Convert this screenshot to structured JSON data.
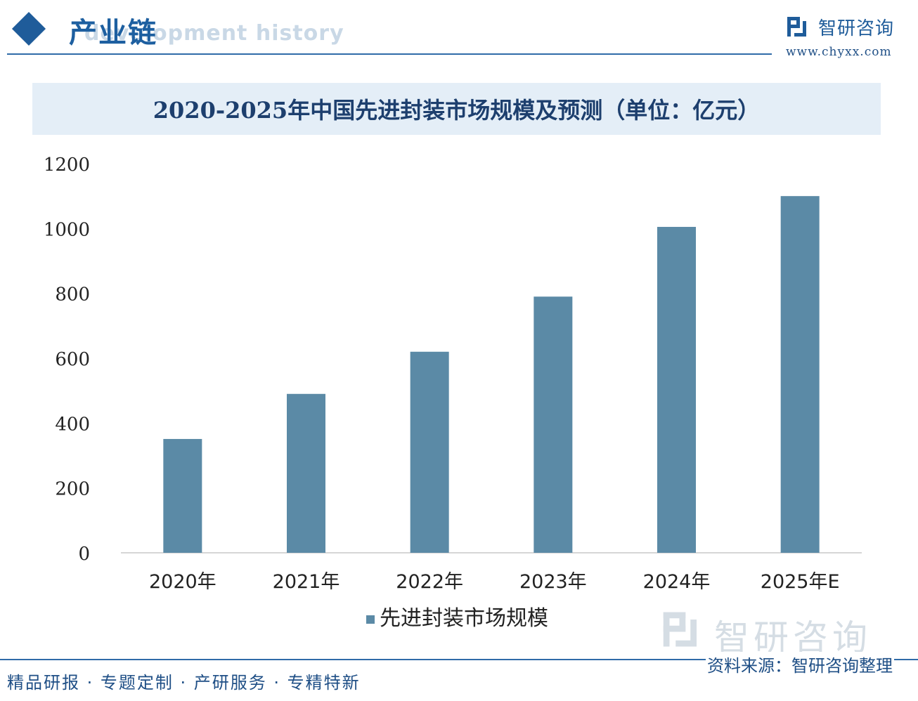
{
  "header": {
    "section_title": "产业链",
    "section_subtitle": "development history",
    "brand_name": "智研咨询",
    "brand_url": "www.chyxx.com"
  },
  "colors": {
    "bar": "#5b8aa6",
    "accent": "#1f5c9a",
    "title_banner_bg": "#e4eef7"
  },
  "chart_data": {
    "type": "bar",
    "title": "2020-2025年中国先进封装市场规模及预测（单位：亿元）",
    "categories": [
      "2020年",
      "2021年",
      "2022年",
      "2023年",
      "2024年",
      "2025年E"
    ],
    "series": [
      {
        "name": "先进封装市场规模",
        "values": [
          351,
          490,
          620,
          790,
          1005,
          1100
        ]
      }
    ],
    "xlabel": "",
    "ylabel": "",
    "ylim": [
      0,
      1200
    ],
    "yticks": [
      "0",
      "200",
      "400",
      "600",
      "800",
      "1000",
      "1200"
    ],
    "grid": false,
    "legend_position": "bottom"
  },
  "footer": {
    "tagline": "精品研报 · 专题定制 · 产研服务 · 专精特新",
    "source": "资料来源：智研咨询整理",
    "watermark_text": "智研咨询"
  }
}
